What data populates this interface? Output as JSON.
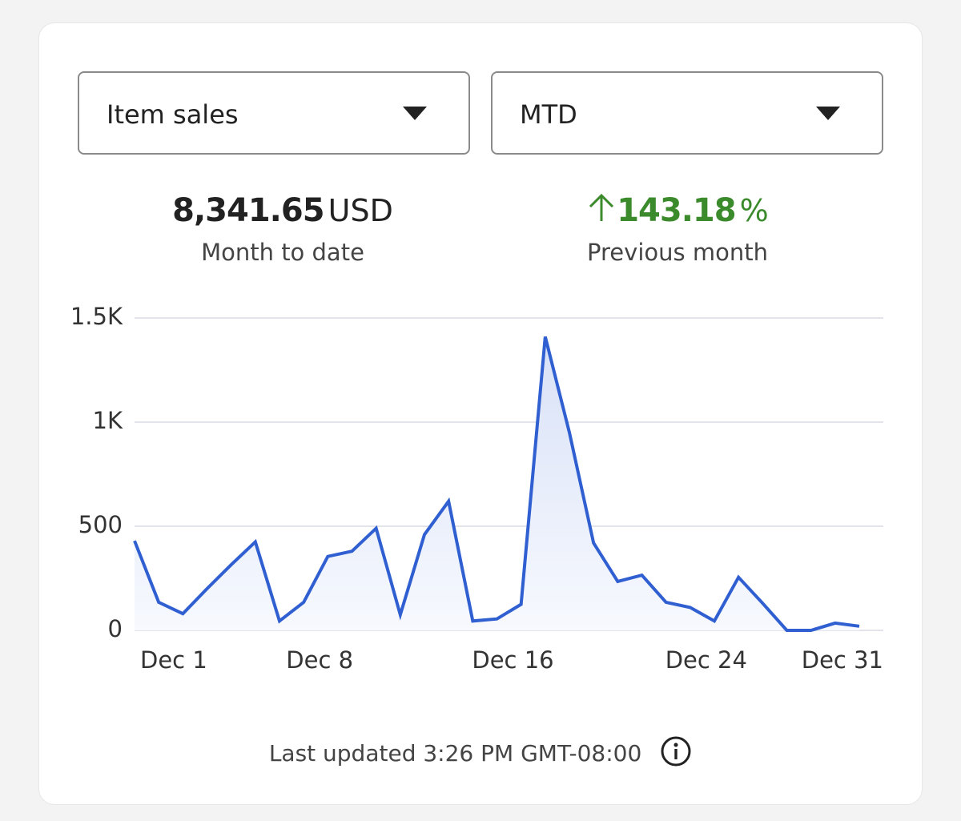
{
  "controls": {
    "metric": "Item sales",
    "period": "MTD"
  },
  "summary": {
    "total": {
      "value": "8,341.65",
      "unit": "USD",
      "label": "Month to date"
    },
    "change": {
      "value": "143.18",
      "unit": "%",
      "label": "Previous month"
    }
  },
  "chart_data": {
    "type": "line",
    "categories": [
      "Dec 1",
      null,
      null,
      null,
      null,
      null,
      null,
      "Dec 8",
      null,
      null,
      null,
      null,
      null,
      null,
      null,
      "Dec 16",
      null,
      null,
      null,
      null,
      null,
      null,
      null,
      "Dec 24",
      null,
      null,
      null,
      null,
      null,
      null,
      "Dec 31"
    ],
    "series": [
      {
        "name": "Item sales",
        "color": "#2f5fd0",
        "values": [
          430,
          135,
          80,
          200,
          315,
          425,
          45,
          135,
          355,
          380,
          490,
          75,
          460,
          620,
          45,
          55,
          125,
          1410,
          950,
          420,
          235,
          265,
          135,
          110,
          45,
          255,
          130,
          0,
          0,
          35,
          20
        ]
      }
    ],
    "ylim": [
      0,
      1500
    ],
    "yticks": [
      0,
      500,
      {
        "value": 1000,
        "label": "1K"
      },
      {
        "value": 1500,
        "label": "1.5K"
      }
    ],
    "grid": true
  },
  "footer": {
    "text": "Last updated 3:26 PM GMT-08:00"
  }
}
